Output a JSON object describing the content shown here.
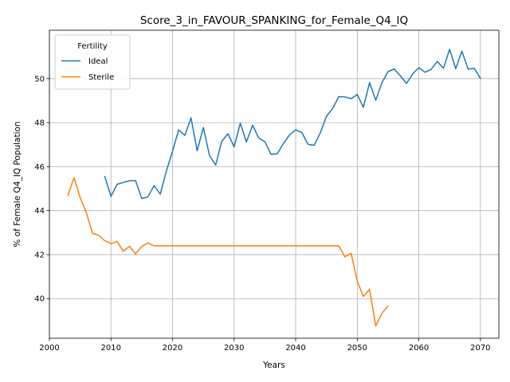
{
  "chart_data": {
    "type": "line",
    "title": "Score_3_in_FAVOUR_SPANKING_for_Female_Q4_IQ",
    "xlabel": "Years",
    "ylabel": "% of Female Q4_IQ Population",
    "xlim": [
      2000,
      2073
    ],
    "ylim": [
      38.2,
      52.2
    ],
    "x_ticks": [
      2000,
      2010,
      2020,
      2030,
      2040,
      2050,
      2060,
      2070
    ],
    "y_ticks": [
      40,
      42,
      44,
      46,
      48,
      50
    ],
    "grid": true,
    "legend": {
      "title": "Fertility",
      "placement": "top-left"
    },
    "series": [
      {
        "name": "Ideal",
        "color": "#1f77b4",
        "x": [
          2009,
          2010,
          2011,
          2012,
          2013,
          2014,
          2015,
          2016,
          2017,
          2018,
          2019,
          2020,
          2021,
          2022,
          2023,
          2024,
          2025,
          2026,
          2027,
          2028,
          2029,
          2030,
          2031,
          2032,
          2033,
          2034,
          2035,
          2036,
          2037,
          2038,
          2039,
          2040,
          2041,
          2042,
          2043,
          2044,
          2045,
          2046,
          2047,
          2048,
          2049,
          2050,
          2051,
          2052,
          2053,
          2054,
          2055,
          2056,
          2057,
          2058,
          2059,
          2060,
          2061,
          2062,
          2063,
          2064,
          2065,
          2066,
          2067,
          2068,
          2069,
          2070
        ],
        "y": [
          45.55,
          44.65,
          45.2,
          45.28,
          45.36,
          45.36,
          44.55,
          44.63,
          45.14,
          44.75,
          45.8,
          46.7,
          47.67,
          47.42,
          48.22,
          46.72,
          47.78,
          46.5,
          46.07,
          47.15,
          47.5,
          46.9,
          47.97,
          47.12,
          47.88,
          47.3,
          47.13,
          46.56,
          46.58,
          47.05,
          47.44,
          47.67,
          47.55,
          47.02,
          46.97,
          47.53,
          48.29,
          48.64,
          49.18,
          49.17,
          49.09,
          49.28,
          48.7,
          49.82,
          49.02,
          49.81,
          50.32,
          50.44,
          50.13,
          49.78,
          50.21,
          50.5,
          50.29,
          50.42,
          50.78,
          50.47,
          51.33,
          50.45,
          51.25,
          50.43,
          50.47,
          50.02
        ]
      },
      {
        "name": "Sterile",
        "color": "#ff7f0e",
        "x": [
          2003,
          2004,
          2005,
          2006,
          2007,
          2008,
          2009,
          2010,
          2011,
          2012,
          2013,
          2014,
          2015,
          2016,
          2017,
          2018,
          2019,
          2020,
          2021,
          2022,
          2023,
          2024,
          2025,
          2026,
          2027,
          2028,
          2029,
          2030,
          2031,
          2032,
          2033,
          2034,
          2035,
          2036,
          2037,
          2038,
          2039,
          2040,
          2041,
          2042,
          2043,
          2044,
          2045,
          2046,
          2047,
          2048,
          2049,
          2050,
          2051,
          2052,
          2053,
          2054,
          2055
        ],
        "y": [
          44.7,
          45.5,
          44.6,
          43.9,
          42.97,
          42.88,
          42.63,
          42.5,
          42.6,
          42.15,
          42.38,
          42.04,
          42.37,
          42.53,
          42.4,
          42.4,
          42.4,
          42.4,
          42.4,
          42.4,
          42.4,
          42.4,
          42.4,
          42.4,
          42.4,
          42.4,
          42.4,
          42.4,
          42.4,
          42.4,
          42.4,
          42.4,
          42.4,
          42.4,
          42.4,
          42.4,
          42.4,
          42.4,
          42.4,
          42.4,
          42.4,
          42.4,
          42.4,
          42.4,
          42.4,
          41.9,
          42.06,
          40.8,
          40.1,
          40.42,
          38.76,
          39.33,
          39.67
        ]
      }
    ]
  }
}
